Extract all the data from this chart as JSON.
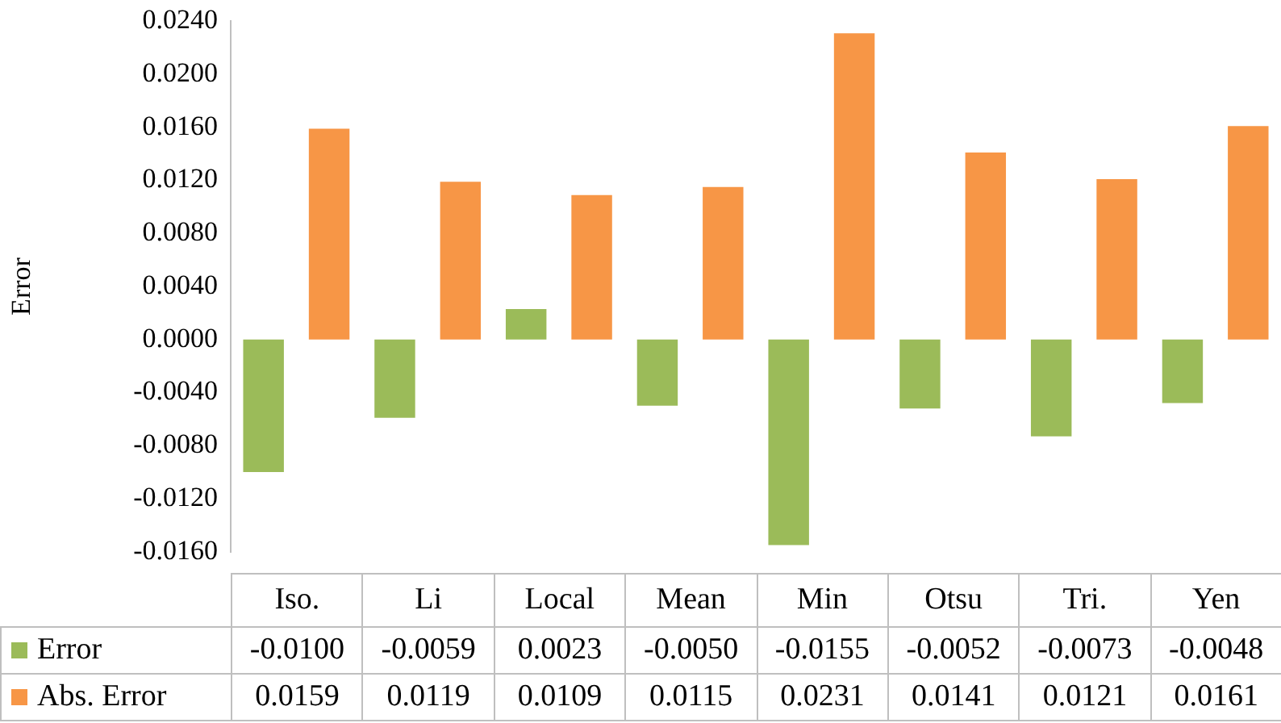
{
  "chart_data": {
    "type": "bar",
    "ylabel": "Error",
    "categories": [
      "Iso.",
      "Li",
      "Local",
      "Mean",
      "Min",
      "Otsu",
      "Tri.",
      "Yen"
    ],
    "series": [
      {
        "name": "Error",
        "color": "#9bbb59",
        "values": [
          -0.01,
          -0.0059,
          0.0023,
          -0.005,
          -0.0155,
          -0.0052,
          -0.0073,
          -0.0048
        ],
        "value_labels": [
          "-0.0100",
          "-0.0059",
          "0.0023",
          "-0.0050",
          "-0.0155",
          "-0.0052",
          "-0.0073",
          "-0.0048"
        ]
      },
      {
        "name": "Abs. Error",
        "color": "#f79646",
        "values": [
          0.0159,
          0.0119,
          0.0109,
          0.0115,
          0.0231,
          0.0141,
          0.0121,
          0.0161
        ],
        "value_labels": [
          "0.0159",
          "0.0119",
          "0.0109",
          "0.0115",
          "0.0231",
          "0.0141",
          "0.0121",
          "0.0161"
        ]
      }
    ],
    "ylim": [
      -0.016,
      0.024
    ],
    "yticks": [
      {
        "value": -0.016,
        "label": "-0.0160"
      },
      {
        "value": -0.012,
        "label": "-0.0120"
      },
      {
        "value": -0.008,
        "label": "-0.0080"
      },
      {
        "value": -0.004,
        "label": "-0.0040"
      },
      {
        "value": 0,
        "label": "0.0000"
      },
      {
        "value": 0.004,
        "label": "0.0040"
      },
      {
        "value": 0.008,
        "label": "0.0080"
      },
      {
        "value": 0.012,
        "label": "0.0120"
      },
      {
        "value": 0.016,
        "label": "0.0160"
      },
      {
        "value": 0.02,
        "label": "0.0200"
      },
      {
        "value": 0.024,
        "label": "0.0240"
      }
    ],
    "grid": false,
    "legend": "bottom"
  }
}
